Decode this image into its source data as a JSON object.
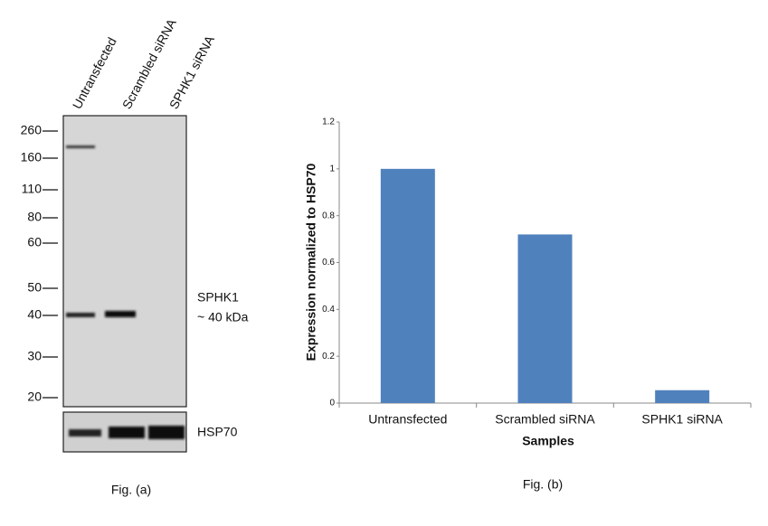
{
  "blot": {
    "lanes": [
      "Untransfected",
      "Scrambled siRNA",
      "SPHK1 siRNA"
    ],
    "markers": [
      "260",
      "160",
      "110",
      "80",
      "60",
      "50",
      "40",
      "30",
      "20"
    ],
    "target_label": "SPHK1",
    "target_size": "~ 40 kDa",
    "control_label": "HSP70",
    "caption": "Fig. (a)"
  },
  "chart_data": {
    "type": "bar",
    "x_label": "Samples",
    "y_label": "Expression normalized to HSP70",
    "categories": [
      "Untransfected",
      "Scrambled siRNA",
      "SPHK1 siRNA"
    ],
    "values": [
      1,
      0.72,
      0.055
    ],
    "color": "#4f81bd",
    "ylim": [
      0,
      1.2
    ],
    "yticks": [
      0,
      0.2,
      0.4,
      0.6,
      0.8,
      1,
      1.2
    ],
    "grid": false,
    "caption": "Fig. (b)"
  }
}
